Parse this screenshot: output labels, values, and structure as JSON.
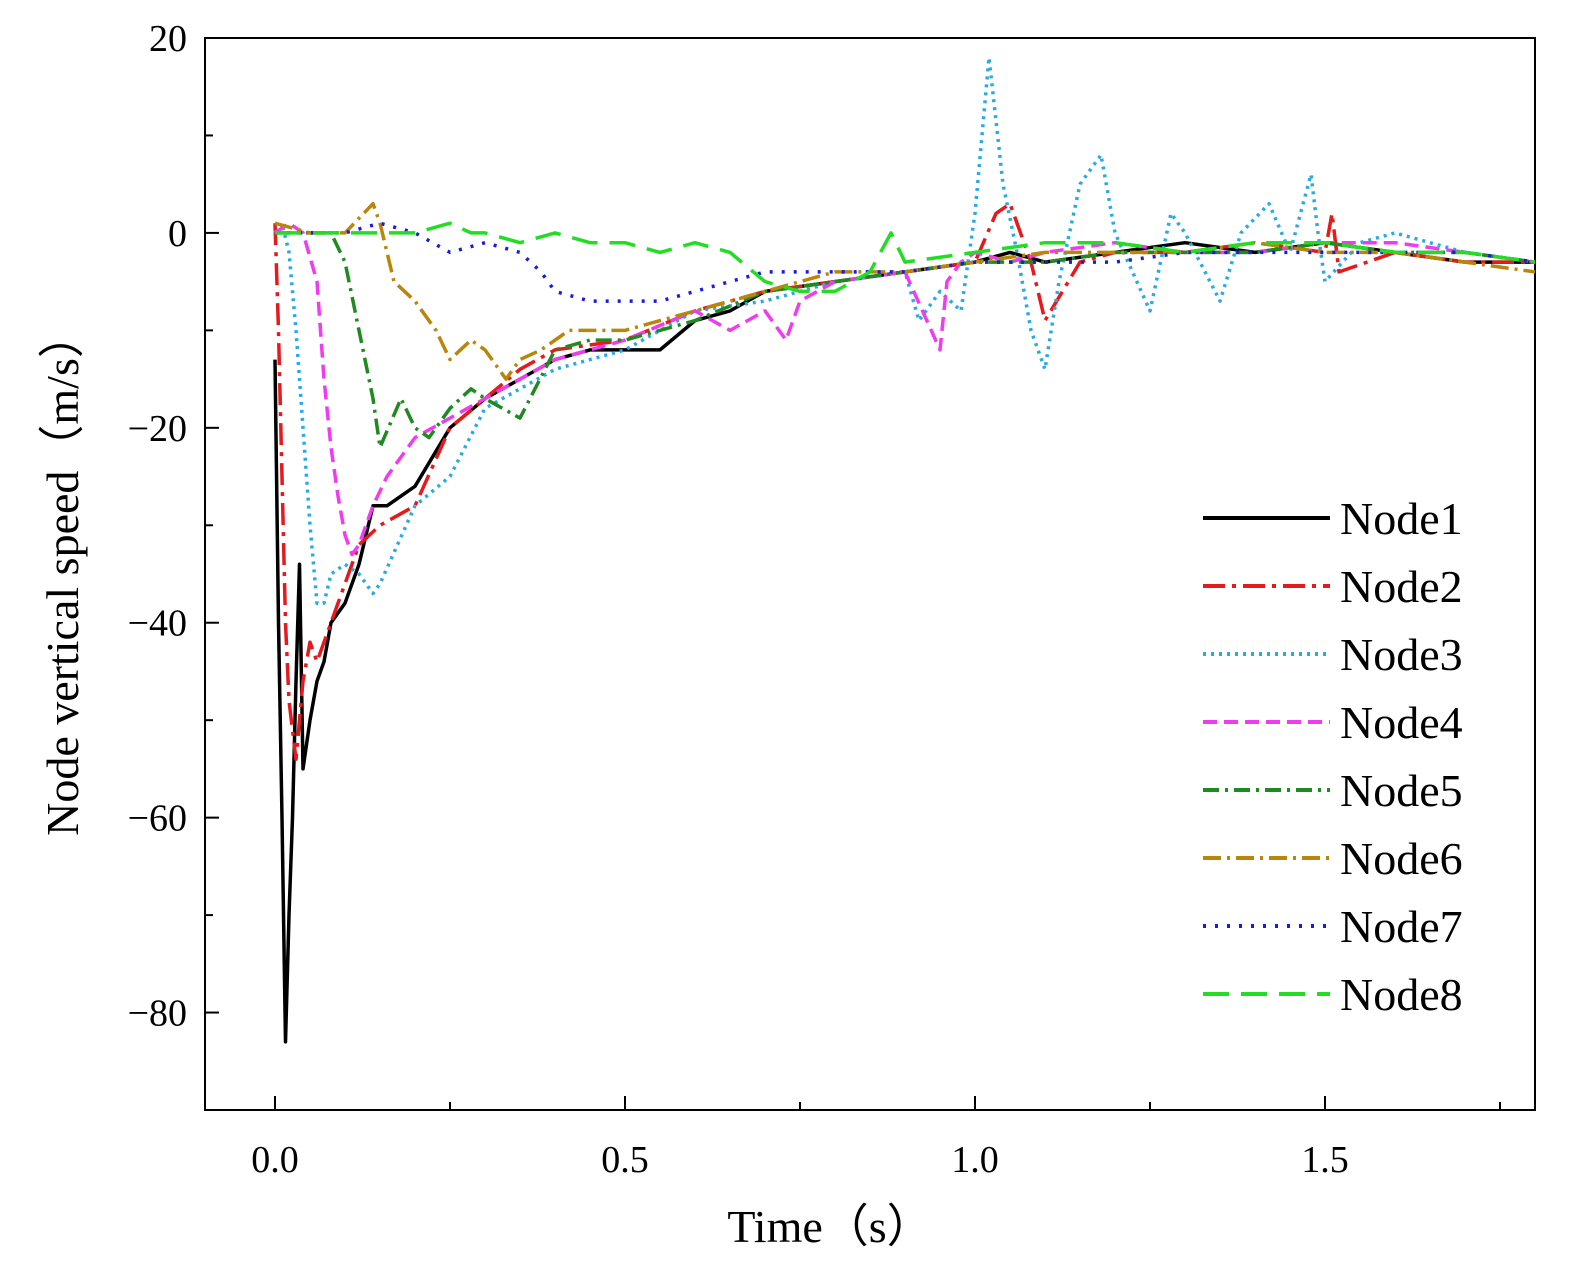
{
  "chart_data": {
    "type": "line",
    "title": "",
    "xlabel": "Time（s）",
    "ylabel": "Node vertical speed（m/s）",
    "xlim": [
      -0.1,
      1.8
    ],
    "ylim": [
      -90,
      20
    ],
    "xticks": [
      0.0,
      0.5,
      1.0,
      1.5
    ],
    "xtick_labels": [
      "0.0",
      "0.5",
      "1.0",
      "1.5"
    ],
    "yticks": [
      20,
      0,
      -20,
      -40,
      -60,
      -80
    ],
    "ytick_labels": [
      "20",
      "0",
      "−20",
      "−40",
      "−60",
      "−80"
    ],
    "legend_position": "right",
    "series": [
      {
        "name": "Node1",
        "color": "#000000",
        "dash": "",
        "x": [
          0.0,
          0.005,
          0.01,
          0.015,
          0.02,
          0.025,
          0.03,
          0.035,
          0.04,
          0.05,
          0.06,
          0.07,
          0.08,
          0.1,
          0.12,
          0.14,
          0.16,
          0.2,
          0.25,
          0.3,
          0.35,
          0.4,
          0.45,
          0.5,
          0.55,
          0.6,
          0.65,
          0.7,
          0.8,
          0.9,
          1.0,
          1.05,
          1.1,
          1.2,
          1.3,
          1.4,
          1.5,
          1.6,
          1.7,
          1.8
        ],
        "y": [
          -13,
          -40,
          -60,
          -83,
          -70,
          -60,
          -46,
          -34,
          -55,
          -50,
          -46,
          -44,
          -40,
          -38,
          -34,
          -28,
          -28,
          -26,
          -20,
          -17,
          -15,
          -13,
          -12,
          -12,
          -12,
          -9,
          -8,
          -6,
          -5,
          -4,
          -3,
          -2,
          -3,
          -2,
          -1,
          -2,
          -1,
          -2,
          -3,
          -3
        ]
      },
      {
        "name": "Node2",
        "color": "#e41a1c",
        "dash": "22,7,4,7",
        "x": [
          0.0,
          0.005,
          0.01,
          0.015,
          0.02,
          0.03,
          0.04,
          0.05,
          0.06,
          0.08,
          0.1,
          0.12,
          0.15,
          0.2,
          0.25,
          0.3,
          0.35,
          0.4,
          0.5,
          0.6,
          0.7,
          0.8,
          0.9,
          1.0,
          1.03,
          1.05,
          1.08,
          1.1,
          1.15,
          1.2,
          1.3,
          1.4,
          1.5,
          1.51,
          1.52,
          1.6,
          1.7,
          1.8
        ],
        "y": [
          1,
          -10,
          -25,
          -40,
          -48,
          -54,
          -46,
          -42,
          -44,
          -40,
          -36,
          -32,
          -30,
          -28,
          -20,
          -17,
          -14,
          -12,
          -11,
          -8,
          -6,
          -5,
          -4,
          -3,
          2,
          3,
          -3,
          -9,
          -3,
          -2,
          -2,
          -1,
          -2,
          2,
          -4,
          -2,
          -3,
          -3
        ]
      },
      {
        "name": "Node3",
        "color": "#29abe2",
        "dash": "3,5",
        "x": [
          0.0,
          0.01,
          0.02,
          0.03,
          0.04,
          0.05,
          0.06,
          0.07,
          0.08,
          0.1,
          0.12,
          0.14,
          0.15,
          0.2,
          0.25,
          0.3,
          0.4,
          0.5,
          0.6,
          0.7,
          0.8,
          0.9,
          0.92,
          0.95,
          0.98,
          1.0,
          1.02,
          1.04,
          1.06,
          1.08,
          1.1,
          1.12,
          1.15,
          1.18,
          1.2,
          1.25,
          1.28,
          1.3,
          1.35,
          1.38,
          1.42,
          1.45,
          1.48,
          1.49,
          1.5,
          1.55,
          1.6,
          1.7,
          1.8
        ],
        "y": [
          0,
          1,
          -2,
          -10,
          -20,
          -30,
          -38,
          -38,
          -35,
          -34,
          -35,
          -37,
          -36,
          -28,
          -25,
          -18,
          -14,
          -12,
          -8,
          -7,
          -5,
          -4,
          -9,
          -6,
          -8,
          2,
          18,
          5,
          -2,
          -10,
          -14,
          -5,
          5,
          8,
          0,
          -8,
          2,
          0,
          -7,
          0,
          3,
          -2,
          6,
          0,
          -5,
          -1,
          0,
          -2,
          -3
        ]
      },
      {
        "name": "Node4",
        "color": "#f03cf0",
        "dash": "14,7",
        "x": [
          0.0,
          0.02,
          0.04,
          0.06,
          0.07,
          0.08,
          0.09,
          0.1,
          0.11,
          0.12,
          0.13,
          0.14,
          0.16,
          0.2,
          0.25,
          0.3,
          0.4,
          0.5,
          0.6,
          0.65,
          0.7,
          0.73,
          0.75,
          0.8,
          0.9,
          0.95,
          0.96,
          0.98,
          1.0,
          1.05,
          1.1,
          1.2,
          1.3,
          1.4,
          1.5,
          1.6,
          1.7,
          1.8
        ],
        "y": [
          0,
          1,
          0,
          -5,
          -15,
          -22,
          -27,
          -31,
          -33,
          -32,
          -30,
          -28,
          -25,
          -21,
          -19,
          -17,
          -13,
          -11,
          -8,
          -10,
          -8,
          -11,
          -7,
          -5,
          -4,
          -12,
          -5,
          -3,
          -2,
          -3,
          -2,
          -1,
          -2,
          -2,
          -1,
          -1,
          -2,
          -3
        ]
      },
      {
        "name": "Node5",
        "color": "#1f8a1f",
        "dash": "16,6,3,6",
        "x": [
          0.0,
          0.05,
          0.08,
          0.1,
          0.12,
          0.14,
          0.15,
          0.18,
          0.2,
          0.22,
          0.25,
          0.28,
          0.3,
          0.35,
          0.4,
          0.45,
          0.5,
          0.6,
          0.7,
          0.8,
          0.9,
          1.0,
          1.1,
          1.2,
          1.3,
          1.4,
          1.5,
          1.6,
          1.7,
          1.8
        ],
        "y": [
          0,
          0,
          0,
          -3,
          -10,
          -17,
          -22,
          -17,
          -20,
          -21,
          -18,
          -16,
          -17,
          -19,
          -12,
          -11,
          -11,
          -9,
          -6,
          -5,
          -4,
          -3,
          -3,
          -2,
          -2,
          -2,
          -1,
          -2,
          -2,
          -3
        ]
      },
      {
        "name": "Node6",
        "color": "#b8860b",
        "dash": "18,6,3,6",
        "x": [
          0.0,
          0.05,
          0.1,
          0.14,
          0.15,
          0.17,
          0.2,
          0.23,
          0.25,
          0.28,
          0.3,
          0.33,
          0.35,
          0.38,
          0.42,
          0.5,
          0.6,
          0.7,
          0.8,
          0.9,
          1.0,
          1.1,
          1.2,
          1.3,
          1.4,
          1.5,
          1.6,
          1.7,
          1.8
        ],
        "y": [
          1,
          0,
          0,
          3,
          1,
          -5,
          -7,
          -10,
          -13,
          -11,
          -12,
          -15,
          -13,
          -12,
          -10,
          -10,
          -8,
          -6,
          -4,
          -4,
          -3,
          -2,
          -2,
          -2,
          -1,
          -2,
          -2,
          -3,
          -4
        ]
      },
      {
        "name": "Node7",
        "color": "#1a1ae6",
        "dash": "3,9",
        "x": [
          0.0,
          0.05,
          0.1,
          0.15,
          0.2,
          0.25,
          0.3,
          0.35,
          0.38,
          0.4,
          0.45,
          0.5,
          0.55,
          0.6,
          0.65,
          0.7,
          0.8,
          0.9,
          1.0,
          1.1,
          1.2,
          1.3,
          1.4,
          1.5,
          1.6,
          1.7,
          1.8
        ],
        "y": [
          0,
          0,
          0,
          1,
          0,
          -2,
          -1,
          -2,
          -4,
          -6,
          -7,
          -7,
          -7,
          -6,
          -5,
          -4,
          -4,
          -4,
          -3,
          -3,
          -3,
          -2,
          -2,
          -2,
          -2,
          -2,
          -3
        ]
      },
      {
        "name": "Node8",
        "color": "#22dd22",
        "dash": "26,12",
        "x": [
          0.0,
          0.05,
          0.1,
          0.15,
          0.2,
          0.25,
          0.28,
          0.3,
          0.35,
          0.4,
          0.45,
          0.5,
          0.55,
          0.6,
          0.65,
          0.7,
          0.75,
          0.8,
          0.85,
          0.88,
          0.9,
          1.0,
          1.1,
          1.2,
          1.3,
          1.4,
          1.5,
          1.6,
          1.7,
          1.8
        ],
        "y": [
          0,
          0,
          0,
          0,
          0,
          1,
          0,
          0,
          -1,
          0,
          -1,
          -1,
          -2,
          -1,
          -2,
          -5,
          -6,
          -6,
          -4,
          0,
          -3,
          -2,
          -1,
          -1,
          -2,
          -1,
          -1,
          -2,
          -2,
          -3
        ]
      }
    ]
  }
}
